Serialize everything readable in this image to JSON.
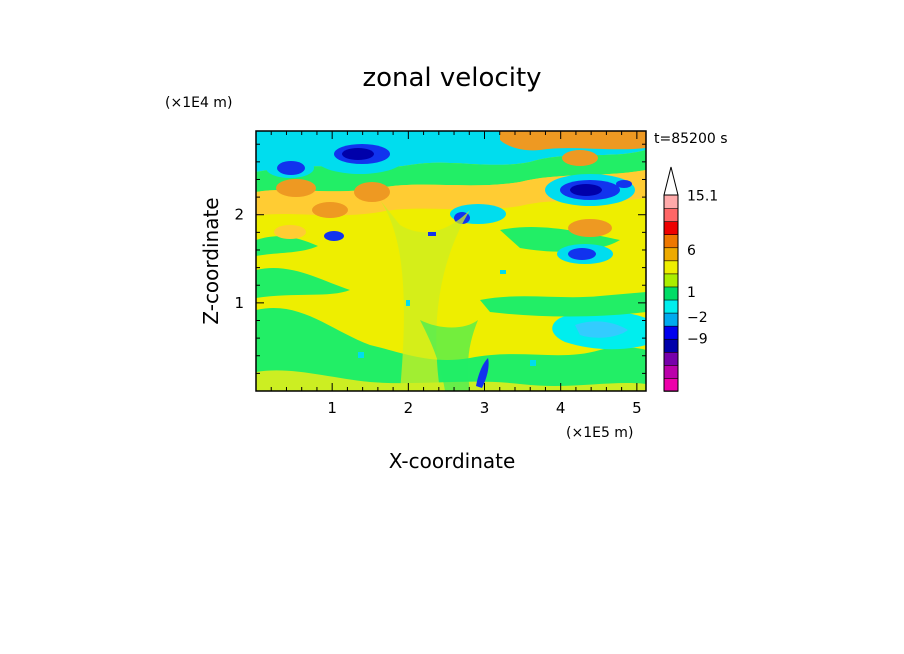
{
  "chart_data": {
    "type": "heatmap",
    "title": "zonal velocity",
    "xlabel": "X-coordinate",
    "ylabel": "Z-coordinate",
    "x_unit": "(×1E5 m)",
    "y_unit": "(×1E4 m)",
    "time_label": "t=85200 s",
    "xlim": [
      0,
      5.12
    ],
    "ylim": [
      0,
      2.95
    ],
    "x_ticks": [
      1,
      2,
      3,
      4,
      5
    ],
    "y_ticks": [
      1,
      2
    ],
    "x_tick_labels": [
      "1",
      "2",
      "3",
      "4",
      "5"
    ],
    "y_tick_labels": [
      "1",
      "2"
    ],
    "grid": false,
    "colorbar": {
      "labels": [
        {
          "value": 15.1,
          "text": "15.1"
        },
        {
          "value": 6,
          "text": "6"
        },
        {
          "value": 1,
          "text": "1"
        },
        {
          "value": -2,
          "text": "−2"
        },
        {
          "value": -9,
          "text": "−9"
        }
      ],
      "levels": [
        {
          "color": "#ee00aa"
        },
        {
          "color": "#bb00aa"
        },
        {
          "color": "#7700aa"
        },
        {
          "color": "#0000aa"
        },
        {
          "color": "#0000ee"
        },
        {
          "color": "#00aaee"
        },
        {
          "color": "#00eeee"
        },
        {
          "color": "#00dd66"
        },
        {
          "color": "#aaee00"
        },
        {
          "color": "#eeee00"
        },
        {
          "color": "#eeaa00"
        },
        {
          "color": "#ee7700"
        },
        {
          "color": "#ee0000"
        },
        {
          "color": "#ff6666"
        },
        {
          "color": "#ffaaaa"
        }
      ]
    },
    "field_colors": {
      "deep_blue": "#0000aa",
      "blue": "#1133ee",
      "cyan": "#00ddee",
      "light_cyan": "#33ccff",
      "green": "#22ee66",
      "yellow_green": "#ccee22",
      "yellow": "#eeee00",
      "light_orange": "#ffcc33",
      "orange": "#ee9922"
    }
  }
}
